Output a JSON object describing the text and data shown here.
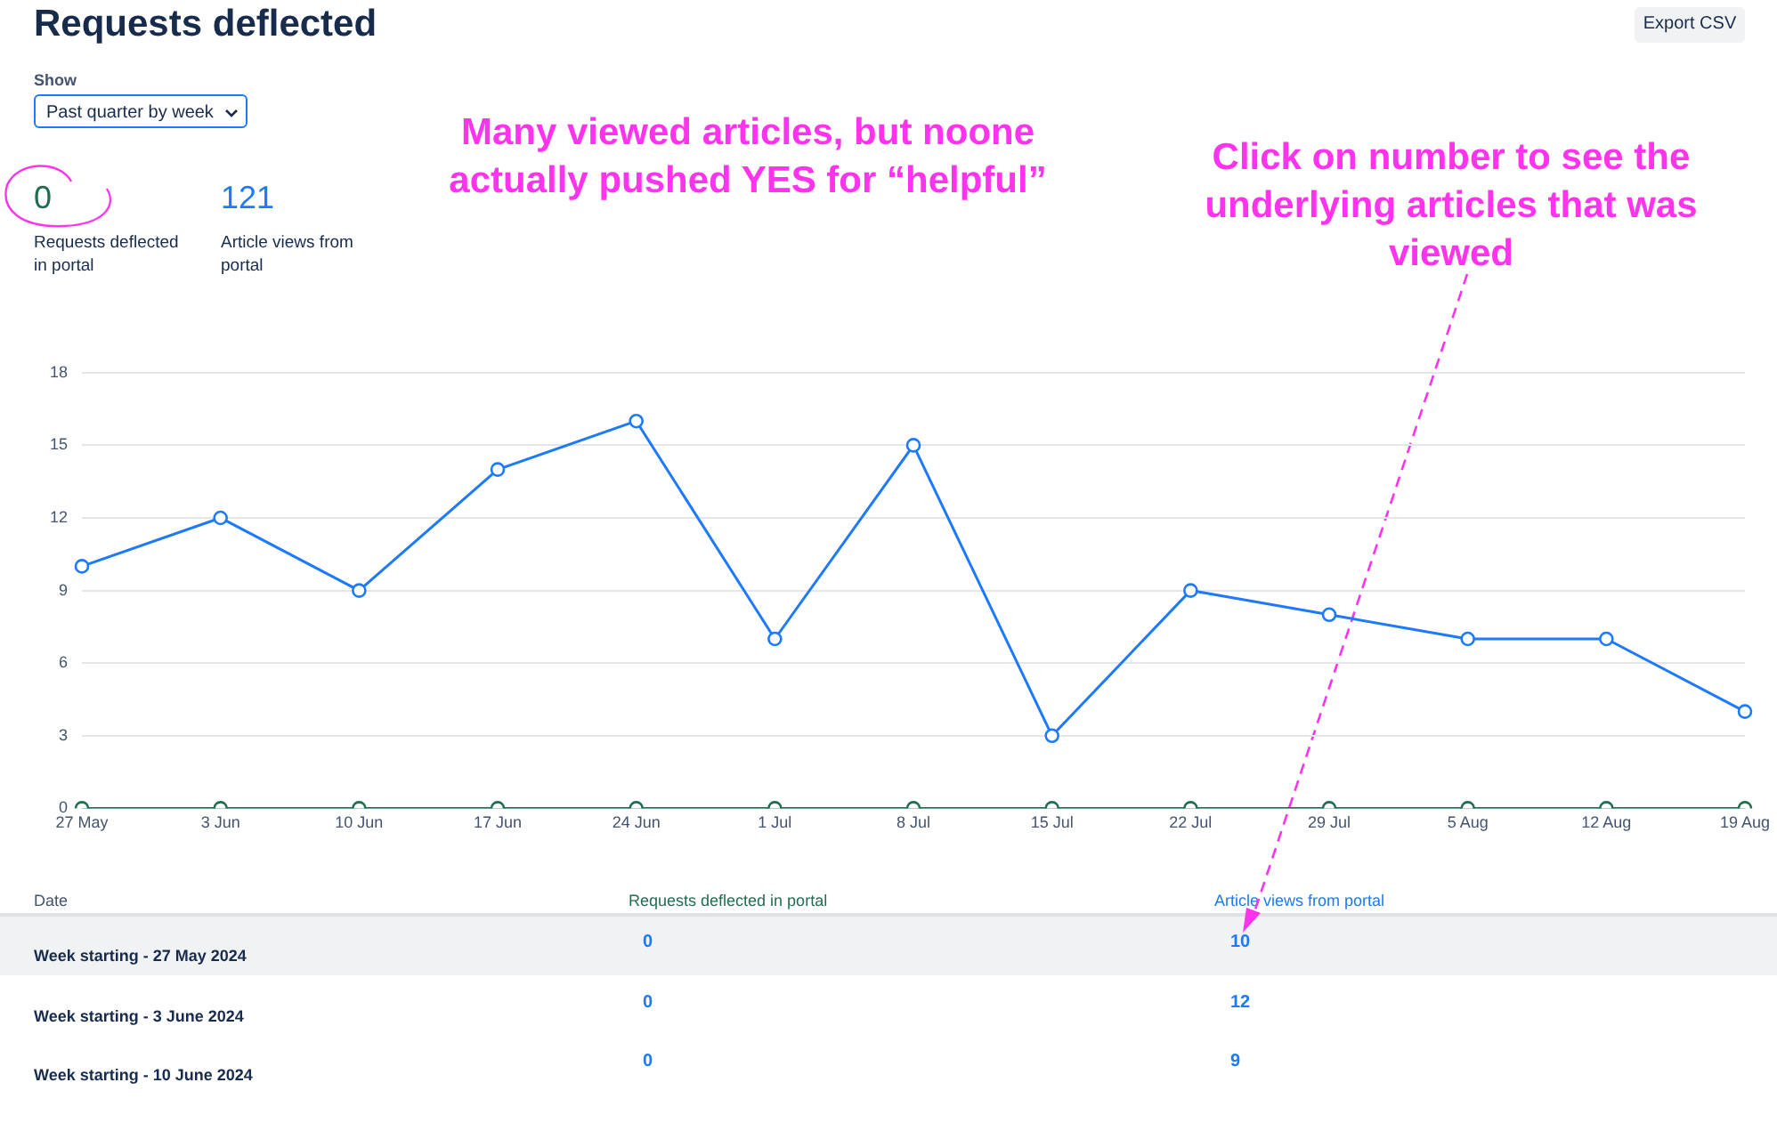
{
  "chart_data": {
    "type": "line",
    "title": "Requests deflected",
    "categories": [
      "27 May",
      "3 Jun",
      "10 Jun",
      "17 Jun",
      "24 Jun",
      "1 Jul",
      "8 Jul",
      "15 Jul",
      "22 Jul",
      "29 Jul",
      "5 Aug",
      "12 Aug",
      "19 Aug"
    ],
    "series": [
      {
        "name": "Article views from portal",
        "color": "#1d7afc",
        "values": [
          10,
          12,
          9,
          14,
          16,
          7,
          15,
          3,
          9,
          8,
          7,
          7,
          4
        ]
      },
      {
        "name": "Requests deflected in portal",
        "color": "#216e4e",
        "values": [
          0,
          0,
          0,
          0,
          0,
          0,
          0,
          0,
          0,
          0,
          0,
          0,
          0
        ]
      }
    ],
    "ylim": [
      0,
      18
    ],
    "yticks": [
      0,
      3,
      6,
      9,
      12,
      15,
      18
    ],
    "grid": "y",
    "legend": false,
    "marker": "circle",
    "line_style": "solid",
    "annotations": [
      "Show",
      "Past quarter by week",
      "Export CSV",
      "0",
      "121",
      "Date",
      "Week starting - 27 May 2024",
      "Week starting - 3 June 2024",
      "Week starting - 10 June 2024",
      "Many viewed articles, but noone actually pushed YES for “helpful”",
      "Click on number to see the underlying articles that was viewed",
      "0",
      "10",
      "0",
      "12",
      "0",
      "9"
    ]
  }
}
